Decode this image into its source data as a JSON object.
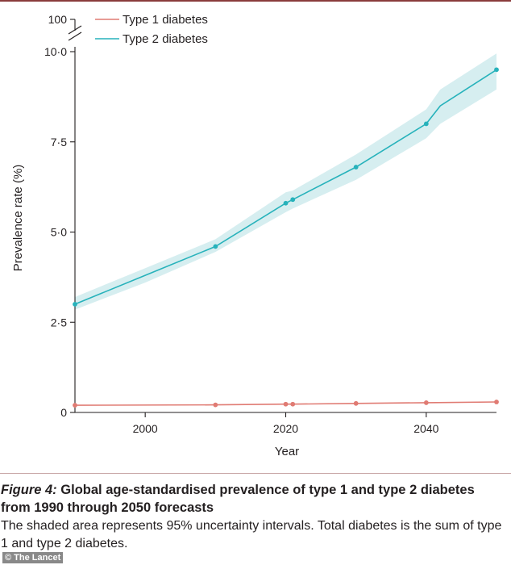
{
  "chart_data": {
    "type": "line",
    "xlabel": "Year",
    "ylabel": "Prevalence rate (%)",
    "xlim": [
      1990,
      2050
    ],
    "ylim": [
      0,
      10
    ],
    "x_ticks": [
      2000,
      2020,
      2040
    ],
    "y_ticks": [
      0,
      2.5,
      5,
      7.5,
      10
    ],
    "y_tick_labels": [
      "0",
      "2·5",
      "5·0",
      "7·5",
      "10·0"
    ],
    "y_break_label": "100",
    "legend_position": "top-left",
    "series": [
      {
        "name": "Type 1 diabetes",
        "color": "#e07b73",
        "x": [
          1990,
          2010,
          2020,
          2021,
          2030,
          2040,
          2050
        ],
        "y": [
          0.2,
          0.21,
          0.23,
          0.23,
          0.25,
          0.27,
          0.29
        ],
        "markers": [
          1990,
          2010,
          2020,
          2021,
          2030,
          2040,
          2050
        ]
      },
      {
        "name": "Type 2 diabetes",
        "color": "#27b2bb",
        "band_color": "#d6eef0",
        "x": [
          1990,
          2000,
          2010,
          2020,
          2021,
          2030,
          2040,
          2042,
          2050
        ],
        "y": [
          3.0,
          3.8,
          4.6,
          5.8,
          5.9,
          6.8,
          8.0,
          8.5,
          9.5
        ],
        "lower": [
          2.85,
          3.6,
          4.45,
          5.55,
          5.65,
          6.45,
          7.6,
          8.0,
          8.95
        ],
        "upper": [
          3.2,
          4.0,
          4.8,
          6.1,
          6.15,
          7.15,
          8.4,
          8.95,
          9.95
        ],
        "markers": [
          1990,
          2010,
          2020,
          2021,
          2030,
          2040,
          2050
        ]
      }
    ]
  },
  "caption": {
    "figure_label": "Figure 4:",
    "title_rest": " Global age-standardised prevalence of type 1 and type 2 diabetes",
    "title_line2": "from 1990 through 2050 forecasts",
    "body": "The shaded area represents 95% uncertainty intervals. Total diabetes is the sum of type 1 and type 2 diabetes."
  },
  "watermark": "© The Lancet"
}
